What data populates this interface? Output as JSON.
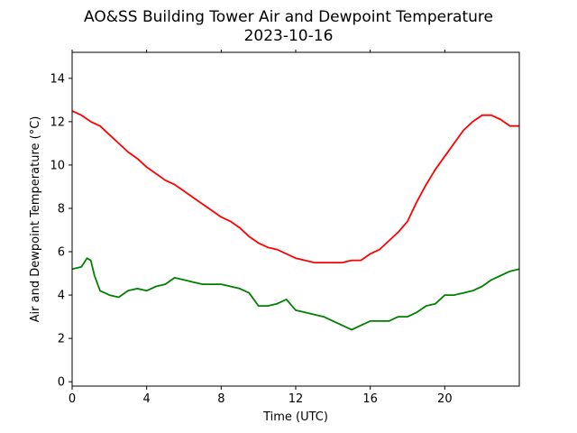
{
  "chart_data": {
    "type": "line",
    "title": "AO&SS Building Tower Air and Dewpoint Temperature",
    "subtitle": "2023-10-16",
    "xlabel": "Time (UTC)",
    "ylabel": "Air and Dewpoint Temperature (°C)",
    "xlim": [
      0,
      24
    ],
    "ylim": [
      -0.2,
      15.2
    ],
    "xticks": [
      0,
      4,
      8,
      12,
      16,
      20
    ],
    "yticks": [
      0,
      2,
      4,
      6,
      8,
      10,
      12,
      14
    ],
    "grid": false,
    "legend": "none",
    "series": [
      {
        "color": "#ff0000",
        "x": [
          0,
          0.5,
          1,
          1.5,
          2,
          2.5,
          3,
          3.5,
          4,
          4.5,
          5,
          5.5,
          6,
          6.5,
          7,
          7.5,
          8,
          8.5,
          9,
          9.5,
          10,
          10.5,
          11,
          11.5,
          12,
          12.5,
          13,
          13.5,
          14,
          14.5,
          15,
          15.5,
          16,
          16.5,
          17,
          17.5,
          18,
          18.5,
          19,
          19.5,
          20,
          20.5,
          21,
          21.5,
          22,
          22.5,
          23,
          23.5,
          24
        ],
        "y": [
          12.5,
          12.3,
          12.0,
          11.8,
          11.4,
          11.0,
          10.6,
          10.3,
          9.9,
          9.6,
          9.3,
          9.1,
          8.8,
          8.5,
          8.2,
          7.9,
          7.6,
          7.4,
          7.1,
          6.7,
          6.4,
          6.2,
          6.1,
          5.9,
          5.7,
          5.6,
          5.5,
          5.5,
          5.5,
          5.5,
          5.6,
          5.6,
          5.9,
          6.1,
          6.5,
          6.9,
          7.4,
          8.3,
          9.1,
          9.8,
          10.4,
          11.0,
          11.6,
          12.0,
          12.3,
          12.3,
          12.1,
          11.8,
          11.8
        ]
      },
      {
        "color": "#008000",
        "x": [
          0,
          0.5,
          0.8,
          1,
          1.2,
          1.5,
          2,
          2.5,
          3,
          3.5,
          4,
          4.5,
          5,
          5.5,
          6,
          6.5,
          7,
          7.5,
          8,
          8.5,
          9,
          9.5,
          10,
          10.5,
          11,
          11.5,
          12,
          12.5,
          13,
          13.5,
          14,
          14.5,
          15,
          15.5,
          16,
          16.5,
          17,
          17.5,
          18,
          18.5,
          19,
          19.5,
          20,
          20.5,
          21,
          21.5,
          22,
          22.5,
          23,
          23.5,
          24
        ],
        "y": [
          5.2,
          5.3,
          5.7,
          5.6,
          4.9,
          4.2,
          4.0,
          3.9,
          4.2,
          4.3,
          4.2,
          4.4,
          4.5,
          4.8,
          4.7,
          4.6,
          4.5,
          4.5,
          4.5,
          4.4,
          4.3,
          4.1,
          3.5,
          3.5,
          3.6,
          3.8,
          3.3,
          3.2,
          3.1,
          3.0,
          2.8,
          2.6,
          2.4,
          2.6,
          2.8,
          2.8,
          2.8,
          3.0,
          3.0,
          3.2,
          3.5,
          3.6,
          4.0,
          4.0,
          4.1,
          4.2,
          4.4,
          4.7,
          4.9,
          5.1,
          5.2
        ]
      }
    ]
  }
}
